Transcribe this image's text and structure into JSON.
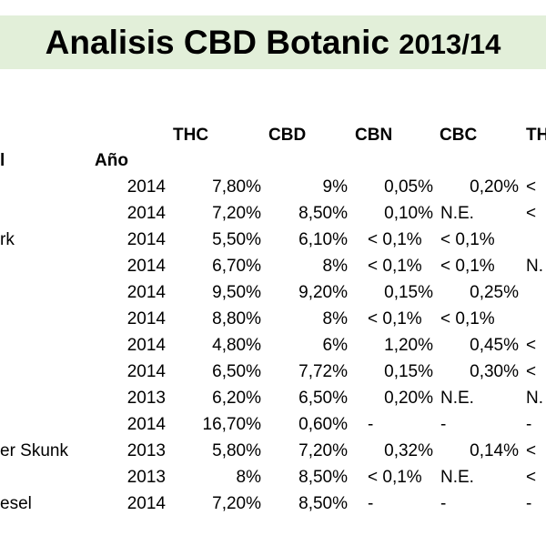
{
  "title": {
    "main": "Analisis CBD Botanic ",
    "year": "2013/14"
  },
  "headers": {
    "variety_fragment": "l",
    "year": "Año",
    "thc": "THC",
    "cbd": "CBD",
    "cbn": "CBN",
    "cbc": "CBC",
    "thcv_fragment": "TH"
  },
  "rows": [
    {
      "name": "",
      "year": "2014",
      "thc": "7,80%",
      "cbd": "9%",
      "cbn": "0,05%",
      "cbc": "0,20%",
      "extra": "<"
    },
    {
      "name": "",
      "year": "2014",
      "thc": "7,20%",
      "cbd": "8,50%",
      "cbn": "0,10%",
      "cbc": "N.E.",
      "extra": "<"
    },
    {
      "name": "rk",
      "year": "2014",
      "thc": "5,50%",
      "cbd": "6,10%",
      "cbn": "< 0,1%",
      "cbc": "< 0,1%",
      "extra": ""
    },
    {
      "name": "",
      "year": "2014",
      "thc": "6,70%",
      "cbd": "8%",
      "cbn": "< 0,1%",
      "cbc": "< 0,1%",
      "extra": "N."
    },
    {
      "name": "",
      "year": "2014",
      "thc": "9,50%",
      "cbd": "9,20%",
      "cbn": "0,15%",
      "cbc": "0,25%",
      "extra": ""
    },
    {
      "name": "",
      "year": "2014",
      "thc": "8,80%",
      "cbd": "8%",
      "cbn": "< 0,1%",
      "cbc": "< 0,1%",
      "extra": ""
    },
    {
      "name": "",
      "year": "2014",
      "thc": "4,80%",
      "cbd": "6%",
      "cbn": "1,20%",
      "cbc": "0,45%",
      "extra": "<"
    },
    {
      "name": "",
      "year": "2014",
      "thc": "6,50%",
      "cbd": "7,72%",
      "cbn": "0,15%",
      "cbc": "0,30%",
      "extra": "<"
    },
    {
      "name": "",
      "year": "2013",
      "thc": "6,20%",
      "cbd": "6,50%",
      "cbn": "0,20%",
      "cbc": "N.E.",
      "extra": "N."
    },
    {
      "name": "",
      "year": "2014",
      "thc": "16,70%",
      "cbd": "0,60%",
      "cbn": "-",
      "cbc": "-",
      "extra": "-"
    },
    {
      "name": "er Skunk",
      "year": "2013",
      "thc": "5,80%",
      "cbd": "7,20%",
      "cbn": "0,32%",
      "cbc": "0,14%",
      "extra": "<"
    },
    {
      "name": "",
      "year": "2013",
      "thc": "8%",
      "cbd": "8,50%",
      "cbn": "< 0,1%",
      "cbc": "N.E.",
      "extra": "<"
    },
    {
      "name": "esel",
      "year": "2014",
      "thc": "7,20%",
      "cbd": "8,50%",
      "cbn": "-",
      "cbc": "-",
      "extra": "-"
    }
  ]
}
